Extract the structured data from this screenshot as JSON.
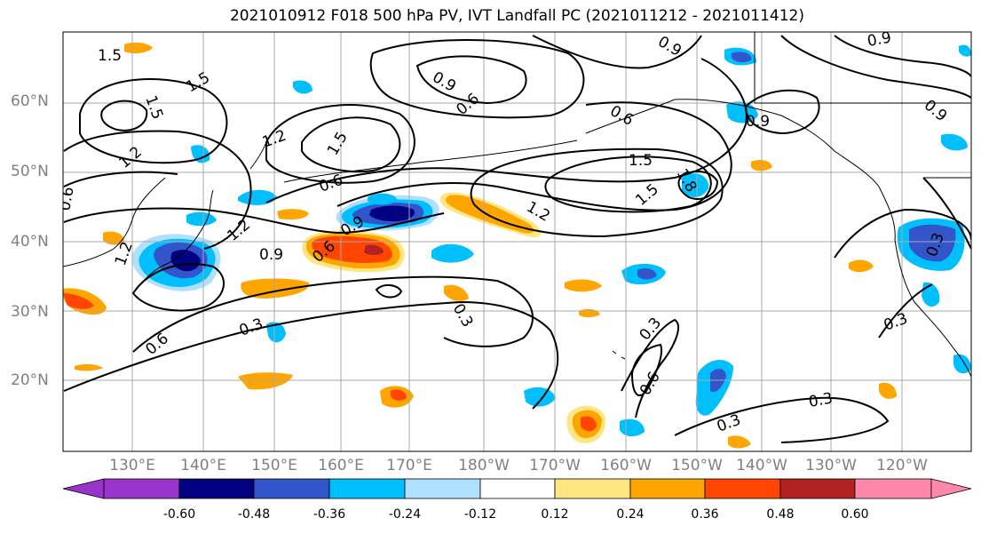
{
  "title": "2021010912 F018 500 hPa PV, IVT Landfall PC (2021011212 - 2021011412)",
  "lat_labels": [
    "20°N",
    "30°N",
    "40°N",
    "50°N",
    "60°N"
  ],
  "lon_labels": [
    "130°E",
    "140°E",
    "150°E",
    "160°E",
    "170°E",
    "180°W",
    "170°W",
    "160°W",
    "150°W",
    "140°W",
    "130°W",
    "120°W"
  ],
  "contour_labels": [
    "1.5",
    "1.5",
    "1.5",
    "1.2",
    "1.2",
    "1.2",
    "1.2",
    "1.5",
    "1.5",
    "1.8",
    "1.5",
    "1.2",
    "0.9",
    "0.9",
    "0.9",
    "0.9",
    "0.9",
    "0.6",
    "0.6",
    "0.6",
    "0.6",
    "0.6",
    "0.6",
    "0.3",
    "0.3",
    "0.3",
    "0.3",
    "0.3",
    "0.3",
    "0.6",
    "0.3",
    "0.9",
    "0.9"
  ],
  "colorbar": {
    "ticks": [
      "-0.60",
      "-0.48",
      "-0.36",
      "-0.24",
      "-0.12",
      "0.12",
      "0.24",
      "0.36",
      "0.48",
      "0.60"
    ],
    "colors": [
      "#9933cc",
      "#000080",
      "#3355cc",
      "#00bfff",
      "#b0e0ff",
      "#ffffff",
      "#ffe680",
      "#ffa500",
      "#ff4500",
      "#b22222",
      "#ff88aa"
    ]
  },
  "map_colors": {
    "dark_blue": "#000080",
    "mid_blue": "#3355cc",
    "light_blue": "#00bfff",
    "pale_blue": "#b0e0ff",
    "yellow": "#ffe680",
    "orange": "#ffa500",
    "red_orange": "#ff4500",
    "dark_red": "#b22222"
  }
}
